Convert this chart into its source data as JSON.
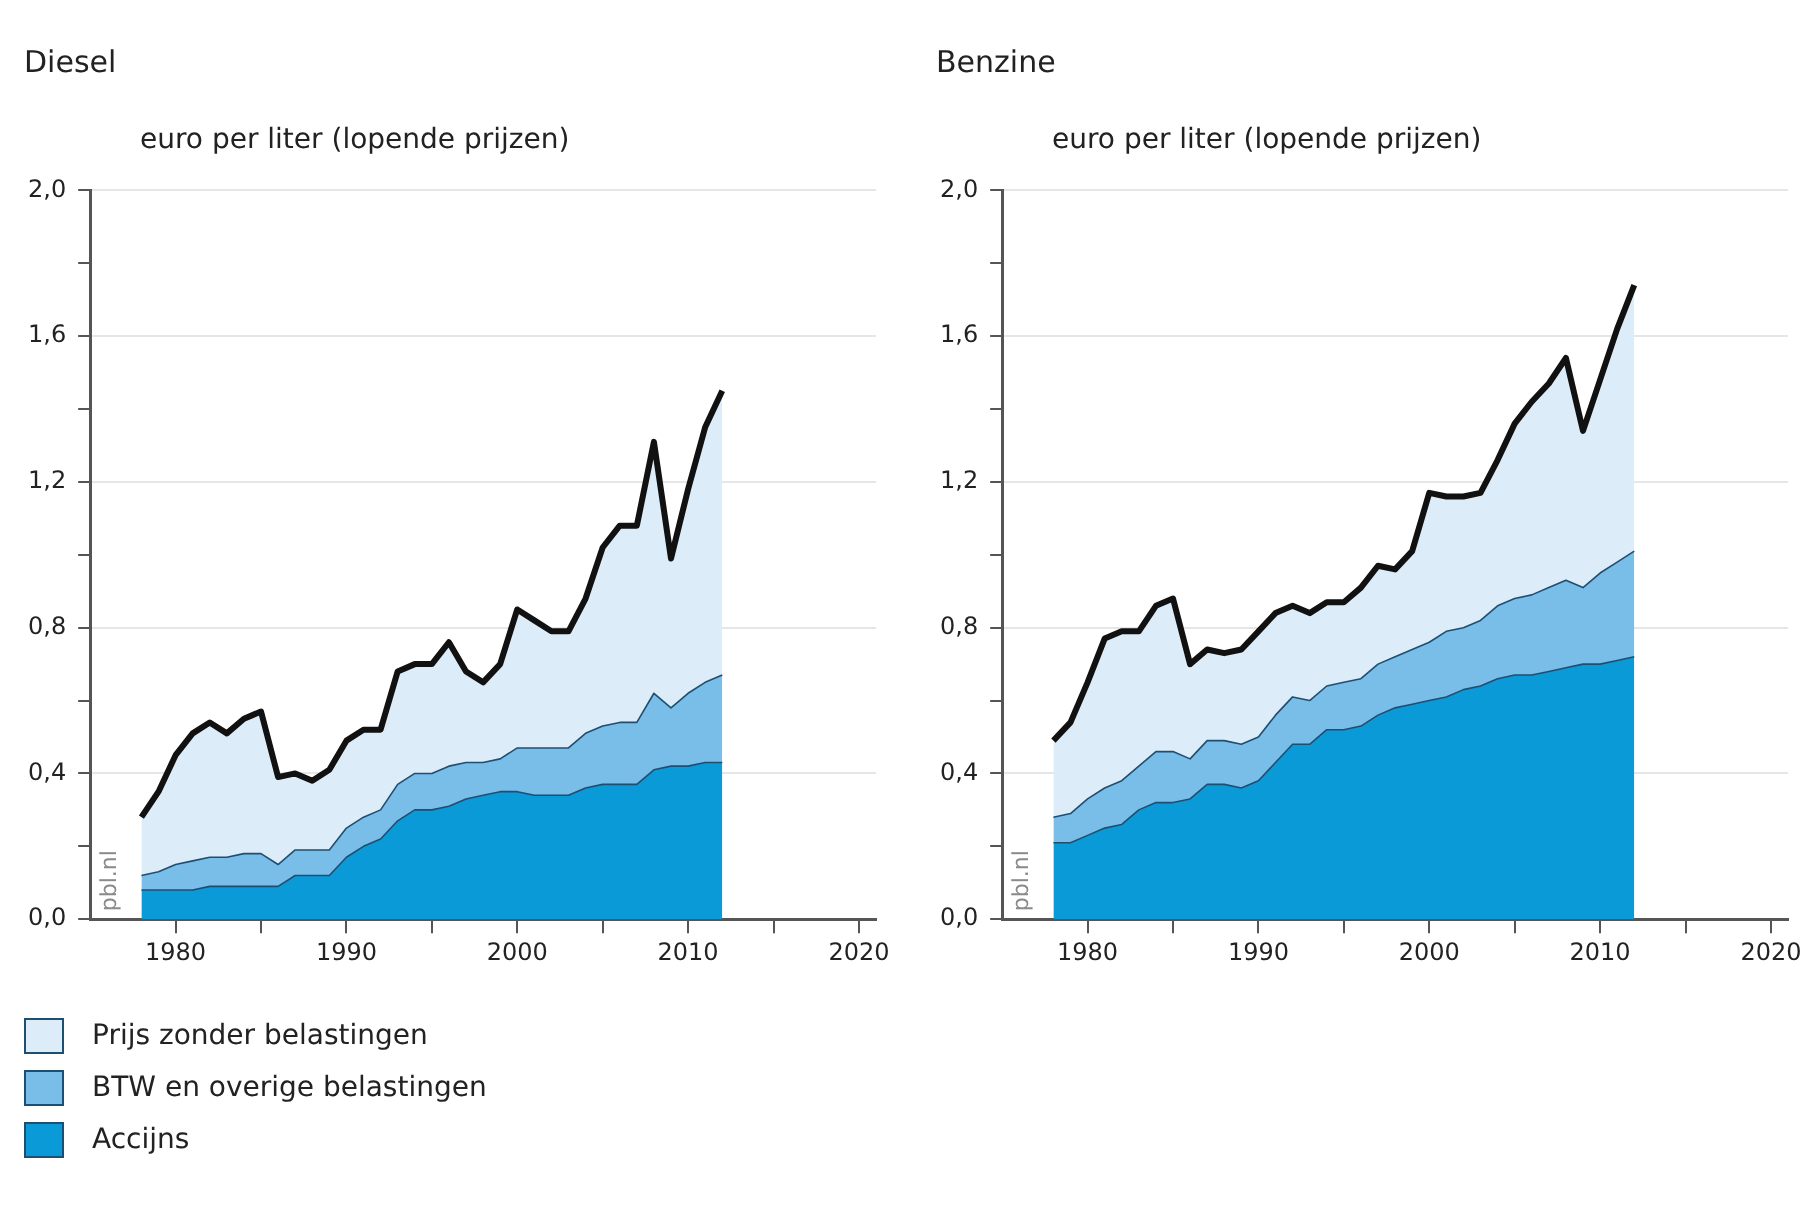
{
  "chart_data": [
    {
      "type": "area",
      "title": "Diesel",
      "ylabel": "euro per liter (lopende prijzen)",
      "stacked": true,
      "grid": "y",
      "legend": "bottom",
      "x": [
        1978,
        1979,
        1980,
        1981,
        1982,
        1983,
        1984,
        1985,
        1986,
        1987,
        1988,
        1989,
        1990,
        1991,
        1992,
        1993,
        1994,
        1995,
        1996,
        1997,
        1998,
        1999,
        2000,
        2001,
        2002,
        2003,
        2004,
        2005,
        2006,
        2007,
        2008,
        2009,
        2010,
        2011,
        2012
      ],
      "series": [
        {
          "name": "Accijns",
          "color": "#0a9ad8",
          "values": [
            0.08,
            0.08,
            0.08,
            0.08,
            0.09,
            0.09,
            0.09,
            0.09,
            0.09,
            0.12,
            0.12,
            0.12,
            0.17,
            0.2,
            0.22,
            0.27,
            0.3,
            0.3,
            0.31,
            0.33,
            0.34,
            0.35,
            0.35,
            0.34,
            0.34,
            0.34,
            0.36,
            0.37,
            0.37,
            0.37,
            0.41,
            0.42,
            0.42,
            0.43,
            0.43
          ]
        },
        {
          "name": "BTW en overige belastingen",
          "color": "#79bde9",
          "values": [
            0.04,
            0.05,
            0.07,
            0.08,
            0.08,
            0.08,
            0.09,
            0.09,
            0.06,
            0.07,
            0.07,
            0.07,
            0.08,
            0.08,
            0.08,
            0.1,
            0.1,
            0.1,
            0.11,
            0.1,
            0.09,
            0.09,
            0.12,
            0.13,
            0.13,
            0.13,
            0.15,
            0.16,
            0.17,
            0.17,
            0.21,
            0.16,
            0.2,
            0.22,
            0.24
          ]
        },
        {
          "name": "Prijs zonder belastingen",
          "color": "#dcecf9",
          "values": [
            0.16,
            0.22,
            0.3,
            0.35,
            0.37,
            0.34,
            0.37,
            0.39,
            0.24,
            0.21,
            0.19,
            0.22,
            0.24,
            0.24,
            0.22,
            0.31,
            0.3,
            0.3,
            0.34,
            0.25,
            0.22,
            0.26,
            0.38,
            0.35,
            0.32,
            0.32,
            0.37,
            0.49,
            0.54,
            0.54,
            0.69,
            0.41,
            0.56,
            0.7,
            0.78
          ]
        }
      ],
      "xlim": [
        1975,
        2021
      ],
      "xticks": [
        1980,
        {
          "value": 1985,
          "label": null
        },
        1990,
        {
          "value": 1995,
          "label": null
        },
        2000,
        {
          "value": 2005,
          "label": null
        },
        2010,
        {
          "value": 2015,
          "label": null
        },
        2020
      ],
      "ylim": [
        0,
        2
      ],
      "yticks": [
        {
          "value": 0,
          "label": "0,0"
        },
        {
          "value": 0.2,
          "label": null
        },
        {
          "value": 0.4,
          "label": "0,4"
        },
        {
          "value": 0.6,
          "label": null
        },
        {
          "value": 0.8,
          "label": "0,8"
        },
        {
          "value": 1.0,
          "label": null
        },
        {
          "value": 1.2,
          "label": "1,2"
        },
        {
          "value": 1.4,
          "label": null
        },
        {
          "value": 1.6,
          "label": "1,6"
        },
        {
          "value": 1.8,
          "label": null
        },
        {
          "value": 2.0,
          "label": "2,0"
        }
      ],
      "annotations": [
        "pbl.nl"
      ]
    },
    {
      "type": "area",
      "title": "Benzine",
      "ylabel": "euro per liter (lopende prijzen)",
      "stacked": true,
      "grid": "y",
      "x": [
        1978,
        1979,
        1980,
        1981,
        1982,
        1983,
        1984,
        1985,
        1986,
        1987,
        1988,
        1989,
        1990,
        1991,
        1992,
        1993,
        1994,
        1995,
        1996,
        1997,
        1998,
        1999,
        2000,
        2001,
        2002,
        2003,
        2004,
        2005,
        2006,
        2007,
        2008,
        2009,
        2010,
        2011,
        2012
      ],
      "series": [
        {
          "color": "#0a9ad8",
          "values": [
            0.21,
            0.21,
            0.23,
            0.25,
            0.26,
            0.3,
            0.32,
            0.32,
            0.33,
            0.37,
            0.37,
            0.36,
            0.38,
            0.43,
            0.48,
            0.48,
            0.52,
            0.52,
            0.53,
            0.56,
            0.58,
            0.59,
            0.6,
            0.61,
            0.63,
            0.64,
            0.66,
            0.67,
            0.67,
            0.68,
            0.69,
            0.7,
            0.7,
            0.71,
            0.72
          ]
        },
        {
          "color": "#79bde9",
          "values": [
            0.07,
            0.08,
            0.1,
            0.11,
            0.12,
            0.12,
            0.14,
            0.14,
            0.11,
            0.12,
            0.12,
            0.12,
            0.12,
            0.13,
            0.13,
            0.12,
            0.12,
            0.13,
            0.13,
            0.14,
            0.14,
            0.15,
            0.16,
            0.18,
            0.17,
            0.18,
            0.2,
            0.21,
            0.22,
            0.23,
            0.24,
            0.21,
            0.25,
            0.27,
            0.29
          ]
        },
        {
          "color": "#dcecf9",
          "values": [
            0.21,
            0.25,
            0.32,
            0.41,
            0.41,
            0.37,
            0.4,
            0.42,
            0.26,
            0.25,
            0.24,
            0.26,
            0.29,
            0.28,
            0.25,
            0.24,
            0.23,
            0.22,
            0.25,
            0.27,
            0.24,
            0.27,
            0.41,
            0.37,
            0.36,
            0.35,
            0.4,
            0.48,
            0.53,
            0.56,
            0.61,
            0.43,
            0.53,
            0.64,
            0.73
          ]
        }
      ],
      "xlim": [
        1975,
        2021
      ],
      "xticks": [
        1980,
        {
          "value": 1985,
          "label": null
        },
        1990,
        {
          "value": 1995,
          "label": null
        },
        2000,
        {
          "value": 2005,
          "label": null
        },
        2010,
        {
          "value": 2015,
          "label": null
        },
        2020
      ],
      "ylim": [
        0,
        2
      ],
      "yticks": [
        {
          "value": 0,
          "label": "0,0"
        },
        {
          "value": 0.2,
          "label": null
        },
        {
          "value": 0.4,
          "label": "0,4"
        },
        {
          "value": 0.6,
          "label": null
        },
        {
          "value": 0.8,
          "label": "0,8"
        },
        {
          "value": 1.0,
          "label": null
        },
        {
          "value": 1.2,
          "label": "1,2"
        },
        {
          "value": 1.4,
          "label": null
        },
        {
          "value": 1.6,
          "label": "1,6"
        },
        {
          "value": 1.8,
          "label": null
        },
        {
          "value": 2.0,
          "label": "2,0"
        }
      ],
      "annotations": [
        "pbl.nl"
      ]
    }
  ]
}
